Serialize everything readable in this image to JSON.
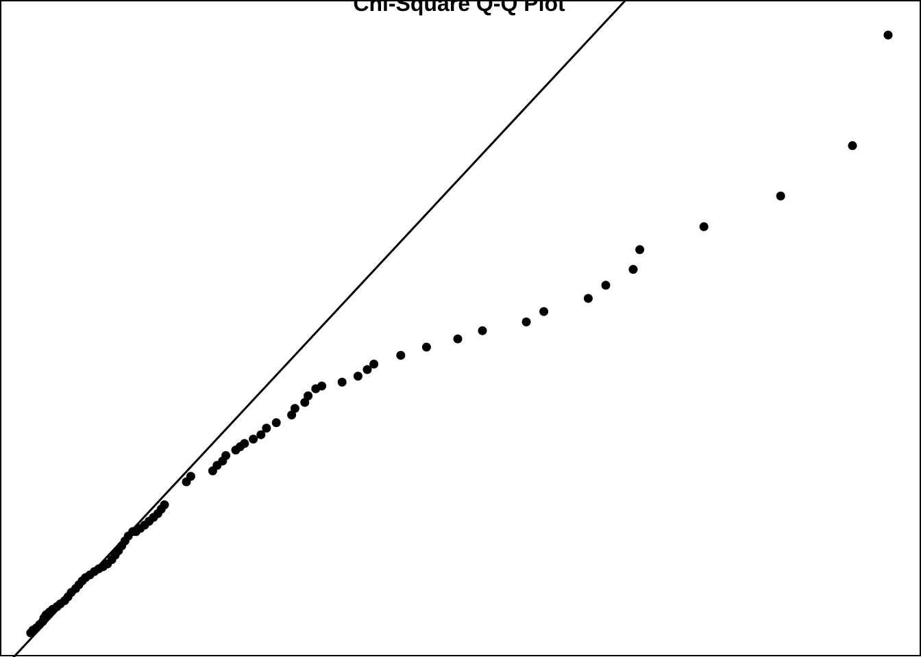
{
  "chart_data": {
    "type": "scatter",
    "title": "Chi-Square Q-Q Plot",
    "xlabel": "",
    "ylabel": "",
    "xlim": [
      0,
      16.8
    ],
    "ylim": [
      0,
      12
    ],
    "grid": false,
    "legend": "none",
    "reference_line": {
      "intercept": -0.27,
      "slope": 1.075
    },
    "colors": {
      "points": "#000000",
      "line": "#000000",
      "frame": "#000000",
      "background": "#ffffff"
    },
    "points": [
      {
        "x": 0.56,
        "y": 0.44
      },
      {
        "x": 0.6,
        "y": 0.49
      },
      {
        "x": 0.66,
        "y": 0.53
      },
      {
        "x": 0.72,
        "y": 0.59
      },
      {
        "x": 0.78,
        "y": 0.65
      },
      {
        "x": 0.8,
        "y": 0.71
      },
      {
        "x": 0.84,
        "y": 0.77
      },
      {
        "x": 0.9,
        "y": 0.82
      },
      {
        "x": 0.96,
        "y": 0.87
      },
      {
        "x": 1.04,
        "y": 0.92
      },
      {
        "x": 1.1,
        "y": 0.97
      },
      {
        "x": 1.18,
        "y": 1.03
      },
      {
        "x": 1.24,
        "y": 1.1
      },
      {
        "x": 1.3,
        "y": 1.18
      },
      {
        "x": 1.38,
        "y": 1.25
      },
      {
        "x": 1.44,
        "y": 1.32
      },
      {
        "x": 1.5,
        "y": 1.39
      },
      {
        "x": 1.56,
        "y": 1.45
      },
      {
        "x": 1.64,
        "y": 1.5
      },
      {
        "x": 1.72,
        "y": 1.56
      },
      {
        "x": 1.8,
        "y": 1.61
      },
      {
        "x": 1.88,
        "y": 1.65
      },
      {
        "x": 1.96,
        "y": 1.7
      },
      {
        "x": 2.04,
        "y": 1.78
      },
      {
        "x": 2.1,
        "y": 1.86
      },
      {
        "x": 2.16,
        "y": 1.94
      },
      {
        "x": 2.22,
        "y": 2.03
      },
      {
        "x": 2.28,
        "y": 2.12
      },
      {
        "x": 2.34,
        "y": 2.21
      },
      {
        "x": 2.42,
        "y": 2.29
      },
      {
        "x": 2.48,
        "y": 2.29
      },
      {
        "x": 2.56,
        "y": 2.35
      },
      {
        "x": 2.64,
        "y": 2.41
      },
      {
        "x": 2.72,
        "y": 2.48
      },
      {
        "x": 2.8,
        "y": 2.55
      },
      {
        "x": 2.88,
        "y": 2.62
      },
      {
        "x": 2.94,
        "y": 2.7
      },
      {
        "x": 3.0,
        "y": 2.78
      },
      {
        "x": 3.4,
        "y": 3.2
      },
      {
        "x": 3.48,
        "y": 3.3
      },
      {
        "x": 3.88,
        "y": 3.4
      },
      {
        "x": 3.96,
        "y": 3.5
      },
      {
        "x": 4.06,
        "y": 3.58
      },
      {
        "x": 4.12,
        "y": 3.68
      },
      {
        "x": 4.3,
        "y": 3.78
      },
      {
        "x": 4.38,
        "y": 3.84
      },
      {
        "x": 4.46,
        "y": 3.9
      },
      {
        "x": 4.62,
        "y": 3.98
      },
      {
        "x": 4.76,
        "y": 4.06
      },
      {
        "x": 4.86,
        "y": 4.18
      },
      {
        "x": 5.04,
        "y": 4.28
      },
      {
        "x": 5.32,
        "y": 4.42
      },
      {
        "x": 5.38,
        "y": 4.54
      },
      {
        "x": 5.56,
        "y": 4.65
      },
      {
        "x": 5.62,
        "y": 4.77
      },
      {
        "x": 5.76,
        "y": 4.9
      },
      {
        "x": 5.87,
        "y": 4.95
      },
      {
        "x": 6.24,
        "y": 5.02
      },
      {
        "x": 6.53,
        "y": 5.13
      },
      {
        "x": 6.7,
        "y": 5.25
      },
      {
        "x": 6.82,
        "y": 5.35
      },
      {
        "x": 7.31,
        "y": 5.51
      },
      {
        "x": 7.78,
        "y": 5.66
      },
      {
        "x": 8.35,
        "y": 5.81
      },
      {
        "x": 8.8,
        "y": 5.96
      },
      {
        "x": 9.6,
        "y": 6.12
      },
      {
        "x": 9.92,
        "y": 6.31
      },
      {
        "x": 10.73,
        "y": 6.55
      },
      {
        "x": 11.05,
        "y": 6.79
      },
      {
        "x": 11.55,
        "y": 7.08
      },
      {
        "x": 11.67,
        "y": 7.44
      },
      {
        "x": 12.84,
        "y": 7.86
      },
      {
        "x": 14.24,
        "y": 8.42
      },
      {
        "x": 15.55,
        "y": 9.34
      },
      {
        "x": 16.2,
        "y": 11.36
      }
    ]
  }
}
